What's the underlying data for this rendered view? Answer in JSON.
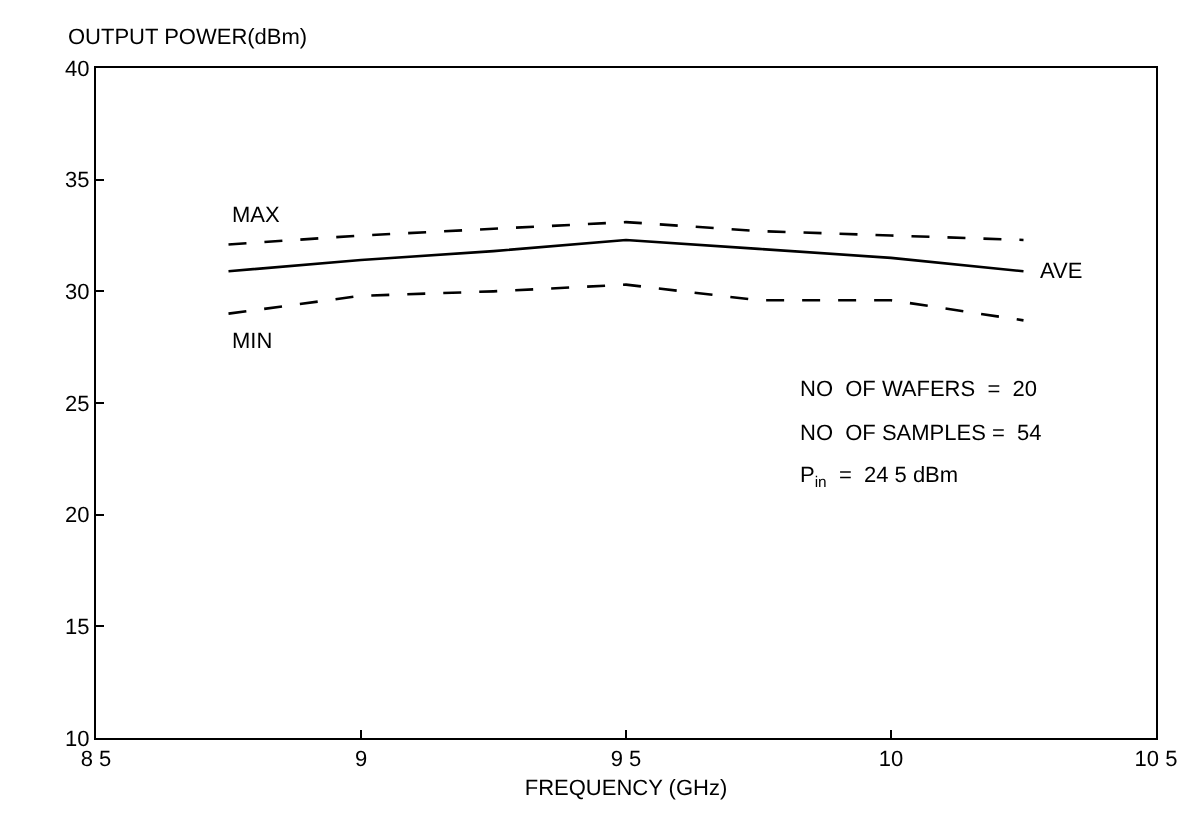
{
  "chart_data": {
    "type": "line",
    "ylabel": "OUTPUT POWER(dBm)",
    "xlabel": "FREQUENCY (GHz)",
    "x": [
      8.75,
      9.0,
      9.25,
      9.5,
      9.75,
      10.0,
      10.25
    ],
    "series": [
      {
        "name": "MAX",
        "color": "#000000",
        "line_style": "dashed",
        "values": [
          32.1,
          32.5,
          32.8,
          33.1,
          32.7,
          32.5,
          32.3
        ]
      },
      {
        "name": "AVE",
        "color": "#000000",
        "line_style": "solid",
        "values": [
          30.9,
          31.4,
          31.8,
          32.3,
          31.9,
          31.5,
          30.9
        ]
      },
      {
        "name": "MIN",
        "color": "#000000",
        "line_style": "dashed",
        "values": [
          29.0,
          29.8,
          30.0,
          30.3,
          29.6,
          29.6,
          28.7
        ]
      }
    ],
    "xlim": [
      8.5,
      10.5
    ],
    "xticks": [
      {
        "value": 8.5,
        "label": "8 5"
      },
      9,
      {
        "value": 9.5,
        "label": "9 5"
      },
      10,
      {
        "value": 10.5,
        "label": "10 5"
      }
    ],
    "ylim": [
      10,
      40
    ],
    "yticks": [
      10,
      15,
      20,
      25,
      30,
      35,
      40
    ],
    "annotations": [
      "NO  OF WAFERS  =  20",
      "NO  OF SAMPLES =  54",
      "P$_{in}$  =  24 5 dBm"
    ],
    "legend": false,
    "marker": "none"
  }
}
